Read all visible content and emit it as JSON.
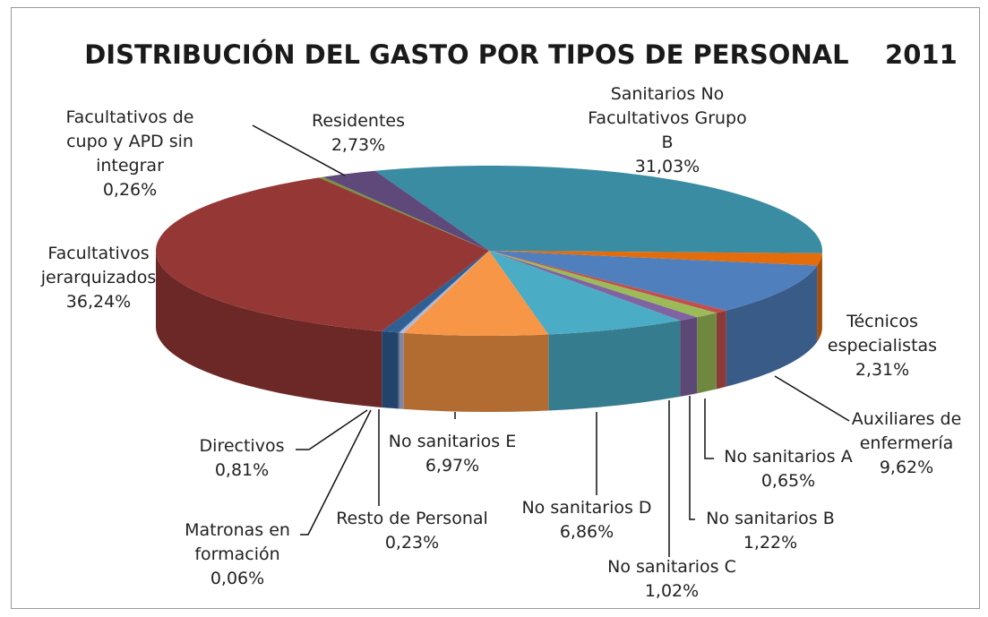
{
  "chart_data": {
    "type": "pie3d",
    "title": "DISTRIBUCIÓN DEL GASTO POR TIPOS DE PERSONAL    2011",
    "categories": [
      "Sanitarios No Facultativos Grupo B",
      "Técnicos especialistas",
      "Auxiliares de enfermería",
      "No sanitarios A",
      "No sanitarios B",
      "No sanitarios C",
      "No sanitarios D",
      "No sanitarios E",
      "Resto de Personal",
      "Matronas en formación",
      "Directivos",
      "Facultativos jerarquizados",
      "Facultativos de cupo y APD sin integrar",
      "Residentes"
    ],
    "values": [
      31.03,
      2.31,
      9.62,
      0.65,
      1.22,
      1.02,
      6.86,
      6.97,
      0.23,
      0.06,
      0.81,
      36.24,
      0.26,
      2.73
    ],
    "value_labels": [
      "31,03%",
      "2,31%",
      "9,62%",
      "0,65%",
      "1,22%",
      "1,02%",
      "6,86%",
      "6,97%",
      "0,23%",
      "0,06%",
      "0,81%",
      "36,24%",
      "0,26%",
      "2,73%"
    ],
    "colors": [
      "#3a8ca3",
      "#e46c0a",
      "#4f7fbd",
      "#c0504d",
      "#9bbb59",
      "#8064a2",
      "#4bacc6",
      "#f79646",
      "#b4b9d8",
      "#3d6fa8",
      "#2f5f93",
      "#953735",
      "#77933c",
      "#5f497a"
    ]
  }
}
